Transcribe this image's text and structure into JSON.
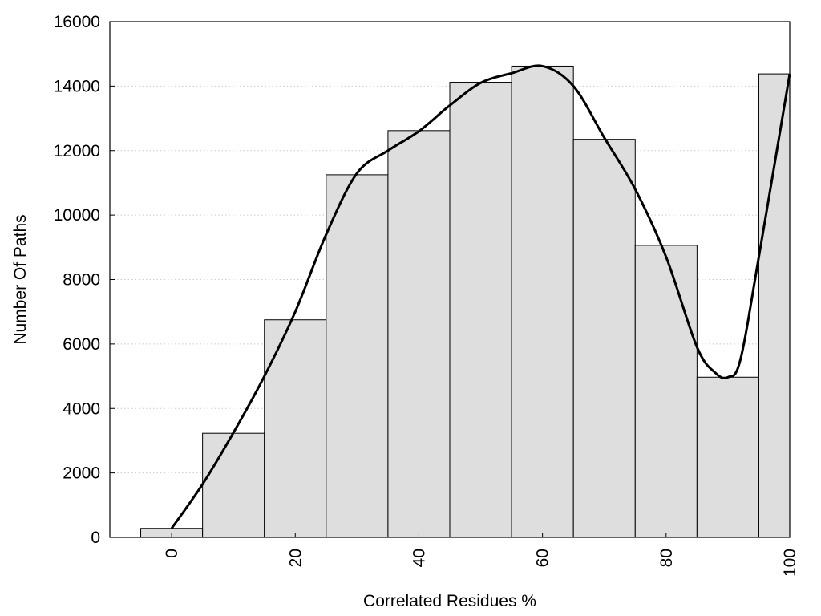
{
  "chart_data": {
    "type": "bar",
    "title": "",
    "xlabel": "Correlated Residues %",
    "ylabel": "Number Of Paths",
    "bin_width": 10,
    "x": [
      0,
      10,
      20,
      30,
      40,
      50,
      60,
      70,
      80,
      90,
      100
    ],
    "values": [
      280,
      3230,
      6750,
      11250,
      12620,
      14120,
      14620,
      12350,
      9060,
      4970,
      14380
    ],
    "xlim": [
      -10,
      100
    ],
    "ylim": [
      0,
      16000
    ],
    "xticks": [
      0,
      20,
      40,
      60,
      80,
      100
    ],
    "yticks": [
      0,
      2000,
      4000,
      6000,
      8000,
      10000,
      12000,
      14000,
      16000
    ],
    "grid": "horizontal-dotted",
    "curve": {
      "type": "line",
      "x": [
        0,
        5,
        10,
        15,
        20,
        25,
        30,
        35,
        40,
        45,
        50,
        55,
        60,
        65,
        70,
        75,
        80,
        85,
        88,
        90,
        92,
        95,
        100
      ],
      "y": [
        280,
        1650,
        3250,
        5000,
        7000,
        9400,
        11300,
        12000,
        12600,
        13400,
        14100,
        14400,
        14620,
        14000,
        12400,
        10800,
        8700,
        5900,
        5100,
        4970,
        5500,
        8700,
        14380
      ]
    },
    "colors": {
      "bar_fill": "#dedede",
      "bar_stroke": "#000000",
      "curve": "#000000",
      "grid": "#cccccc"
    }
  }
}
